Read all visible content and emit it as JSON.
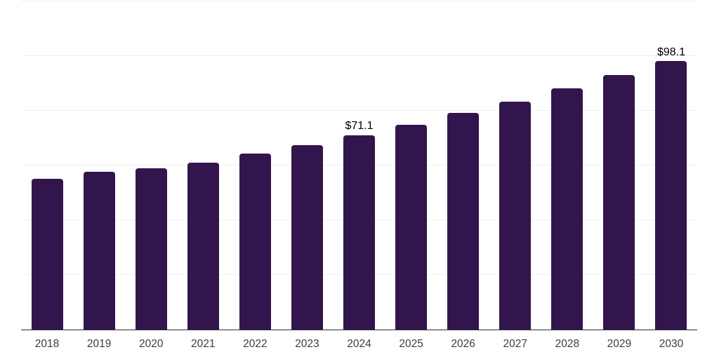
{
  "chart_data": {
    "type": "bar",
    "title": "",
    "xlabel": "",
    "ylabel": "",
    "categories": [
      "2018",
      "2019",
      "2020",
      "2021",
      "2022",
      "2023",
      "2024",
      "2025",
      "2026",
      "2027",
      "2028",
      "2029",
      "2030"
    ],
    "values": [
      55.2,
      57.6,
      58.9,
      61.1,
      64.4,
      67.5,
      71.1,
      74.8,
      79.2,
      83.3,
      88.1,
      93.0,
      98.1
    ],
    "data_labels": [
      null,
      null,
      null,
      null,
      null,
      null,
      "$71.1",
      null,
      null,
      null,
      null,
      null,
      "$98.1"
    ],
    "ylim": [
      0,
      120
    ],
    "gridline_interval": 20,
    "grid": "horizontal",
    "legend_position": "none",
    "colors": {
      "bar": "#32154d",
      "axis_line": "#2e2e2e",
      "gridline": "#efefef",
      "tick_label": "#3d3d3d",
      "data_label": "#000000",
      "background": "#ffffff"
    }
  }
}
